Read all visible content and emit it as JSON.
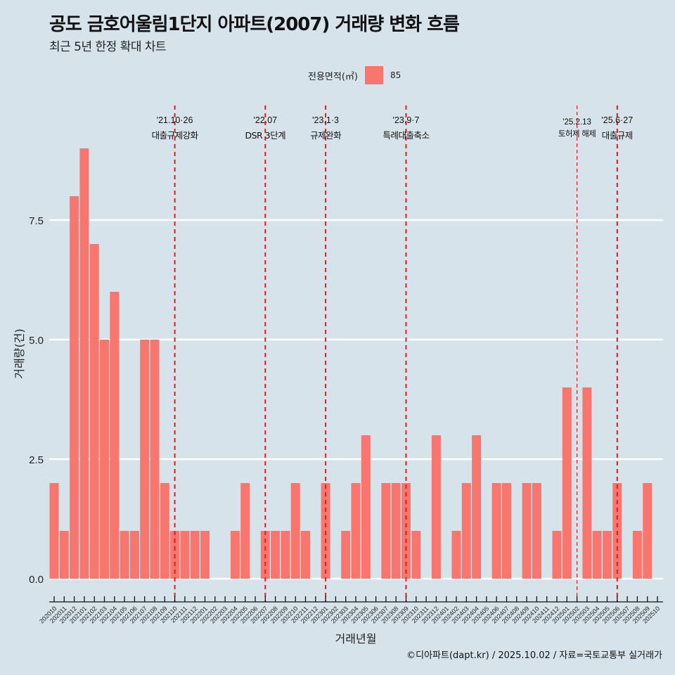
{
  "header": {
    "title": "공도 금호어울림1단지 아파트(2007) 거래량 변화 흐름",
    "subtitle": "최근 5년 한정 확대 차트"
  },
  "legend": {
    "title": "전용면적(㎡)",
    "items": [
      {
        "label": "85",
        "color": "#f8766d"
      }
    ]
  },
  "caption": "©디아파트(dapt.kr) / 2025.10.02 / 자료=국토교통부 실거래가",
  "colors": {
    "background": "#d6e3ea",
    "bar": "#f8766d",
    "grid": "#ffffff",
    "event_line": "#e41a1c"
  },
  "chart_data": {
    "type": "bar",
    "title": "공도 금호어울림1단지 아파트(2007) 거래량 변화 흐름",
    "subtitle": "최근 5년 한정 확대 차트",
    "xlabel": "거래년월",
    "ylabel": "거래량(건)",
    "ylim": [
      0,
      9.5
    ],
    "yticks": [
      0.0,
      2.5,
      5.0,
      7.5
    ],
    "ytick_labels": [
      "0.0",
      "2.5",
      "5.0",
      "7.5"
    ],
    "grid": true,
    "legend_position": "top",
    "categories": [
      "202010",
      "202011",
      "202012",
      "202101",
      "202102",
      "202103",
      "202104",
      "202105",
      "202106",
      "202107",
      "202108",
      "202109",
      "202110",
      "202111",
      "202112",
      "202201",
      "202202",
      "202203",
      "202204",
      "202205",
      "202206",
      "202207",
      "202208",
      "202209",
      "202210",
      "202211",
      "202212",
      "202301",
      "202302",
      "202303",
      "202304",
      "202305",
      "202306",
      "202307",
      "202308",
      "202309",
      "202310",
      "202311",
      "202312",
      "202401",
      "202402",
      "202403",
      "202404",
      "202405",
      "202406",
      "202407",
      "202408",
      "202409",
      "202410",
      "202411",
      "202412",
      "202501",
      "202502",
      "202503",
      "202504",
      "202505",
      "202506",
      "202507",
      "202508",
      "202509",
      "202510"
    ],
    "series": [
      {
        "name": "85",
        "values": [
          2,
          1,
          8,
          9,
          7,
          5,
          6,
          1,
          1,
          5,
          5,
          2,
          1,
          1,
          1,
          1,
          0,
          0,
          1,
          2,
          0,
          1,
          1,
          1,
          2,
          1,
          0,
          2,
          0,
          1,
          2,
          3,
          0,
          2,
          2,
          2,
          1,
          0,
          3,
          0,
          1,
          2,
          3,
          0,
          2,
          2,
          0,
          2,
          2,
          0,
          1,
          4,
          0,
          4,
          1,
          1,
          2,
          0,
          1,
          2,
          0
        ]
      }
    ],
    "annotations": [
      {
        "category": "202110",
        "date": "'21.10·26",
        "label": "대출규제강화",
        "style": "thick"
      },
      {
        "category": "202207",
        "date": "'22.07",
        "label": "DSR 3단계",
        "style": "thick"
      },
      {
        "category": "202301",
        "date": "'23.1·3",
        "label": "규제완화",
        "style": "thick"
      },
      {
        "category": "202309",
        "date": "'23.9·7",
        "label": "특례대출축소",
        "style": "thick"
      },
      {
        "category": "202502",
        "date": "'25.2.13",
        "label": "토허제 해제",
        "style": "thin"
      },
      {
        "category": "202506",
        "date": "'25.6·27",
        "label": "대출규제",
        "style": "thick"
      }
    ]
  }
}
